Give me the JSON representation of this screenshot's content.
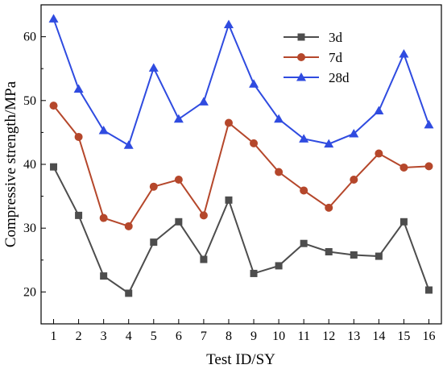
{
  "chart_data": {
    "type": "line",
    "xlabel": "Test ID/SY",
    "ylabel": "Compressive strength/MPa",
    "x": [
      1,
      2,
      3,
      4,
      5,
      6,
      7,
      8,
      9,
      10,
      11,
      12,
      13,
      14,
      15,
      16
    ],
    "xlim": [
      0.5,
      16.5
    ],
    "ylim": [
      15,
      65
    ],
    "yticks": [
      20,
      30,
      40,
      50,
      60
    ],
    "grid": false,
    "legend_position": "top-right",
    "series": [
      {
        "name": "3d",
        "color": "#4d4d4d",
        "marker": "square",
        "values": [
          39.6,
          32.0,
          22.5,
          19.8,
          27.8,
          31.0,
          25.1,
          34.4,
          22.9,
          24.1,
          27.6,
          26.3,
          25.8,
          25.6,
          31.0,
          20.3
        ]
      },
      {
        "name": "7d",
        "color": "#b5472b",
        "marker": "circle",
        "values": [
          49.2,
          44.3,
          31.6,
          30.3,
          36.5,
          37.6,
          32.0,
          46.5,
          43.3,
          38.8,
          35.9,
          33.2,
          37.6,
          41.7,
          39.5,
          39.7
        ]
      },
      {
        "name": "28d",
        "color": "#2f4be0",
        "marker": "triangle",
        "values": [
          62.8,
          51.8,
          45.3,
          43.0,
          55.1,
          47.1,
          49.8,
          61.9,
          52.6,
          47.1,
          44.0,
          43.2,
          44.8,
          48.4,
          57.3,
          46.2
        ]
      }
    ]
  }
}
